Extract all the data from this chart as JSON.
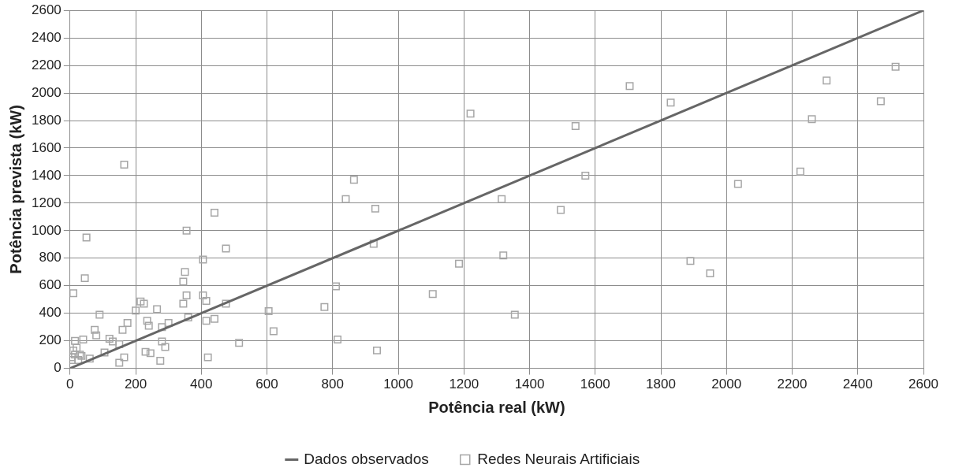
{
  "chart_data": {
    "type": "scatter",
    "xlabel": "Potência real (kW)",
    "ylabel": "Potência prevista (kW)",
    "xlim": [
      0,
      2600
    ],
    "xticks": [
      0,
      200,
      400,
      600,
      800,
      1000,
      1200,
      1400,
      1600,
      1800,
      2000,
      2200,
      2400,
      2600
    ],
    "ylim": [
      0,
      2600
    ],
    "yticks": [
      0,
      200,
      400,
      600,
      800,
      1000,
      1200,
      1400,
      1600,
      1800,
      2000,
      2200,
      2400,
      2600
    ],
    "grid": true,
    "legend": "bottom",
    "series": [
      {
        "name": "Dados observados",
        "type": "line",
        "color": "#666666",
        "marker": "none",
        "x": [
          0,
          2600
        ],
        "values": [
          0,
          2600
        ]
      },
      {
        "name": "Redes Neurais Artificiais",
        "type": "scatter",
        "color": "#a6a6a6",
        "marker": "square",
        "x": [
          1220,
          1705,
          1830,
          2305,
          2515,
          2470,
          2260,
          1540,
          1570,
          2225,
          2035,
          1495,
          1315,
          1320,
          1890,
          1950,
          1185,
          1105,
          1355,
          935,
          930,
          925,
          865,
          840,
          810,
          815,
          775,
          620,
          605,
          515,
          475,
          475,
          440,
          355,
          350,
          355,
          345,
          345,
          405,
          405,
          415,
          415,
          440,
          420,
          360,
          165,
          50,
          45,
          10,
          90,
          200,
          215,
          225,
          265,
          235,
          240,
          280,
          300,
          290,
          280,
          275,
          230,
          245,
          160,
          175,
          75,
          80,
          120,
          130,
          150,
          150,
          165,
          105,
          60,
          30,
          15,
          20,
          10,
          15,
          25,
          35,
          5,
          40,
          5
        ],
        "values": [
          1850,
          2050,
          1930,
          2090,
          2190,
          1940,
          1810,
          1760,
          1400,
          1430,
          1340,
          1150,
          1230,
          820,
          780,
          690,
          760,
          540,
          390,
          130,
          1160,
          905,
          1370,
          1230,
          595,
          210,
          445,
          270,
          415,
          185,
          870,
          470,
          1130,
          1000,
          700,
          530,
          470,
          630,
          790,
          530,
          490,
          345,
          360,
          80,
          370,
          1480,
          950,
          655,
          545,
          390,
          420,
          485,
          470,
          430,
          345,
          310,
          300,
          330,
          155,
          195,
          55,
          120,
          110,
          280,
          330,
          280,
          240,
          215,
          195,
          175,
          40,
          80,
          115,
          70,
          100,
          200,
          150,
          130,
          100,
          60,
          90,
          60,
          210,
          80
        ]
      }
    ]
  }
}
